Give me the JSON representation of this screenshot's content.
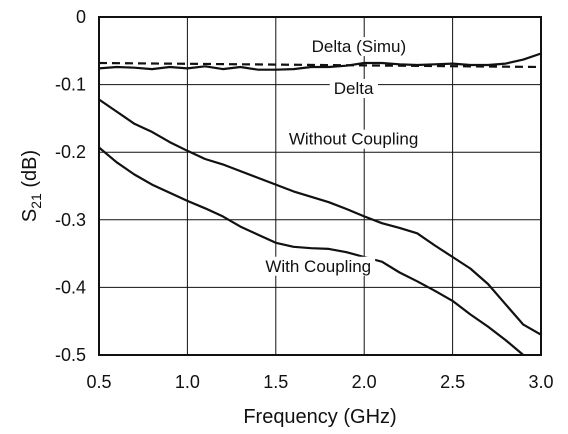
{
  "chart_data": {
    "type": "line",
    "xlabel": "Frequency (GHz)",
    "ylabel": {
      "main": "S",
      "sub": "21",
      "rest": " (dB)"
    },
    "xlim": [
      0.5,
      3.0
    ],
    "ylim": [
      -0.5,
      0
    ],
    "x_ticks": [
      0.5,
      1.0,
      1.5,
      2.0,
      2.5,
      3.0
    ],
    "x_tick_labels": [
      "0.5",
      "1.0",
      "1.5",
      "2.0",
      "2.5",
      "3.0"
    ],
    "y_ticks": [
      0,
      -0.1,
      -0.2,
      -0.3,
      -0.4,
      -0.5
    ],
    "y_tick_labels": [
      "0",
      "-0.1",
      "-0.2",
      "-0.3",
      "-0.4",
      "-0.5"
    ],
    "grid": true,
    "series": [
      {
        "name": "Delta (Simu)",
        "style": "dashed",
        "x": [
          0.5,
          3.0
        ],
        "y": [
          -0.068,
          -0.074
        ]
      },
      {
        "name": "Delta",
        "style": "solid",
        "x": [
          0.5,
          0.6,
          0.7,
          0.8,
          0.9,
          1.0,
          1.1,
          1.2,
          1.3,
          1.4,
          1.5,
          1.6,
          1.7,
          1.8,
          1.9,
          2.0,
          2.1,
          2.2,
          2.3,
          2.4,
          2.5,
          2.6,
          2.7,
          2.8,
          2.9,
          3.0
        ],
        "y": [
          -0.076,
          -0.074,
          -0.075,
          -0.077,
          -0.074,
          -0.076,
          -0.073,
          -0.077,
          -0.074,
          -0.078,
          -0.078,
          -0.077,
          -0.074,
          -0.074,
          -0.072,
          -0.068,
          -0.068,
          -0.07,
          -0.071,
          -0.07,
          -0.069,
          -0.071,
          -0.071,
          -0.069,
          -0.063,
          -0.054
        ]
      },
      {
        "name": "Without Coupling",
        "style": "solid",
        "x": [
          0.5,
          0.6,
          0.7,
          0.8,
          0.9,
          1.0,
          1.1,
          1.2,
          1.3,
          1.4,
          1.5,
          1.6,
          1.7,
          1.8,
          1.9,
          2.0,
          2.1,
          2.2,
          2.3,
          2.4,
          2.5,
          2.6,
          2.7,
          2.8,
          2.9,
          3.0
        ],
        "y": [
          -0.122,
          -0.14,
          -0.158,
          -0.17,
          -0.185,
          -0.198,
          -0.21,
          -0.218,
          -0.228,
          -0.238,
          -0.248,
          -0.258,
          -0.266,
          -0.274,
          -0.284,
          -0.295,
          -0.305,
          -0.312,
          -0.32,
          -0.338,
          -0.355,
          -0.372,
          -0.395,
          -0.425,
          -0.455,
          -0.47
        ]
      },
      {
        "name": "With Coupling",
        "style": "solid",
        "x": [
          0.5,
          0.6,
          0.7,
          0.8,
          0.9,
          1.0,
          1.1,
          1.2,
          1.3,
          1.4,
          1.5,
          1.6,
          1.7,
          1.8,
          1.9,
          2.0,
          2.1,
          2.2,
          2.3,
          2.4,
          2.5,
          2.6,
          2.7,
          2.8,
          2.9
        ],
        "y": [
          -0.193,
          -0.215,
          -0.233,
          -0.248,
          -0.26,
          -0.272,
          -0.283,
          -0.295,
          -0.31,
          -0.322,
          -0.334,
          -0.34,
          -0.342,
          -0.343,
          -0.348,
          -0.355,
          -0.362,
          -0.378,
          -0.391,
          -0.405,
          -0.42,
          -0.44,
          -0.458,
          -0.478,
          -0.5
        ]
      }
    ],
    "annotations": [
      {
        "text": "Delta (Simu)",
        "x": 1.97,
        "y": -0.043
      },
      {
        "text": "Delta",
        "x": 1.94,
        "y": -0.105
      },
      {
        "text": "Without Coupling",
        "x": 1.94,
        "y": -0.18
      },
      {
        "text": "With Coupling",
        "x": 1.74,
        "y": -0.368
      }
    ],
    "colors": {
      "line": "#111111",
      "grid": "#111111"
    }
  }
}
